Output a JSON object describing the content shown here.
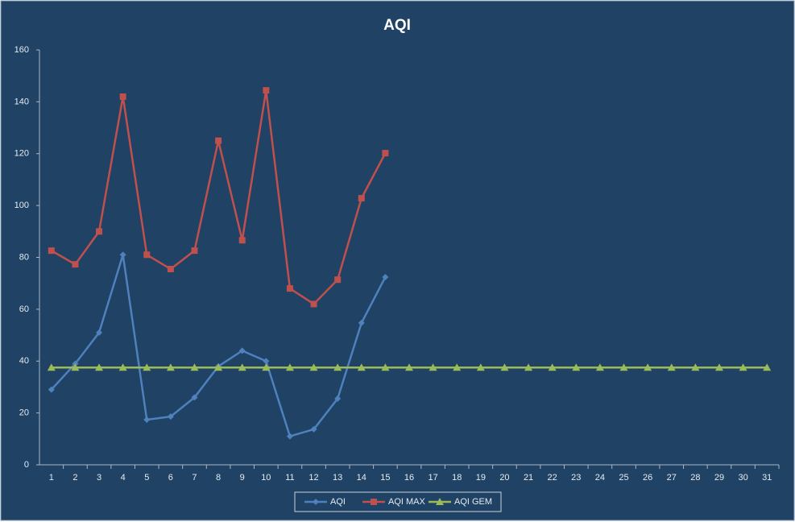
{
  "chart_data": {
    "type": "line",
    "title": "AQI",
    "categories": [
      "1",
      "2",
      "3",
      "4",
      "5",
      "6",
      "7",
      "8",
      "9",
      "10",
      "11",
      "12",
      "13",
      "14",
      "15",
      "16",
      "17",
      "18",
      "19",
      "20",
      "21",
      "22",
      "23",
      "24",
      "25",
      "26",
      "27",
      "28",
      "29",
      "30",
      "31"
    ],
    "series": [
      {
        "name": "AQI",
        "color": "#4f81bd",
        "marker": "diamond",
        "values": [
          29,
          39,
          51,
          81,
          17.4,
          18.6,
          26,
          38,
          44,
          40,
          11,
          13.7,
          25.5,
          54.7,
          72.4,
          null,
          null,
          null,
          null,
          null,
          null,
          null,
          null,
          null,
          null,
          null,
          null,
          null,
          null,
          null,
          null
        ]
      },
      {
        "name": "AQI MAX",
        "color": "#c0504d",
        "marker": "square",
        "values": [
          82.6,
          77.3,
          90,
          142,
          81,
          75.5,
          82.6,
          125,
          86.6,
          144.4,
          68,
          62,
          71.4,
          102.8,
          120.2,
          null,
          null,
          null,
          null,
          null,
          null,
          null,
          null,
          null,
          null,
          null,
          null,
          null,
          null,
          null,
          null
        ]
      },
      {
        "name": "AQI GEM",
        "color": "#9bbb59",
        "marker": "triangle",
        "values": [
          37.5,
          37.5,
          37.5,
          37.5,
          37.5,
          37.5,
          37.5,
          37.5,
          37.5,
          37.5,
          37.5,
          37.5,
          37.5,
          37.5,
          37.5,
          37.5,
          37.5,
          37.5,
          37.5,
          37.5,
          37.5,
          37.5,
          37.5,
          37.5,
          37.5,
          37.5,
          37.5,
          37.5,
          37.5,
          37.5,
          37.5
        ]
      }
    ],
    "ylim": [
      0,
      160
    ],
    "yticks": [
      0,
      20,
      40,
      60,
      80,
      100,
      120,
      140,
      160
    ],
    "grid": false,
    "legend": "bottom"
  }
}
